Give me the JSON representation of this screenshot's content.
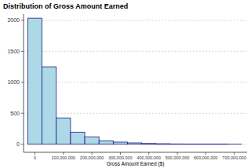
{
  "chart_data": {
    "type": "histogram",
    "title": "Distribution of Gross Amount Earned",
    "x_label": "Gross Amount Earned ($)",
    "bins": [
      -25000000,
      25000000,
      75000000,
      125000000,
      175000000,
      225000000,
      275000000,
      325000000,
      375000000,
      425000000,
      475000000,
      525000000,
      575000000,
      625000000,
      675000000,
      725000000
    ],
    "counts": [
      2035,
      1250,
      425,
      195,
      120,
      55,
      35,
      22,
      12,
      8,
      5,
      3,
      2,
      2,
      1
    ],
    "color": "#add8e6",
    "xlim": [
      -40000000,
      745000000
    ],
    "xticks": [
      0,
      {
        "value": 100000000,
        "label": "100,000,000"
      },
      {
        "value": 200000000,
        "label": "200,000,000"
      },
      {
        "value": 300000000,
        "label": "300,000,000"
      },
      {
        "value": 400000000,
        "label": "400,000,000"
      },
      {
        "value": 500000000,
        "label": "500,000,000"
      },
      {
        "value": 600000000,
        "label": "600,000,000"
      },
      {
        "value": 700000000,
        "label": "700,000,000"
      }
    ],
    "ylim": [
      -130,
      2100
    ],
    "yticks": [
      0,
      500,
      1000,
      1500,
      2000
    ],
    "grid": true
  }
}
